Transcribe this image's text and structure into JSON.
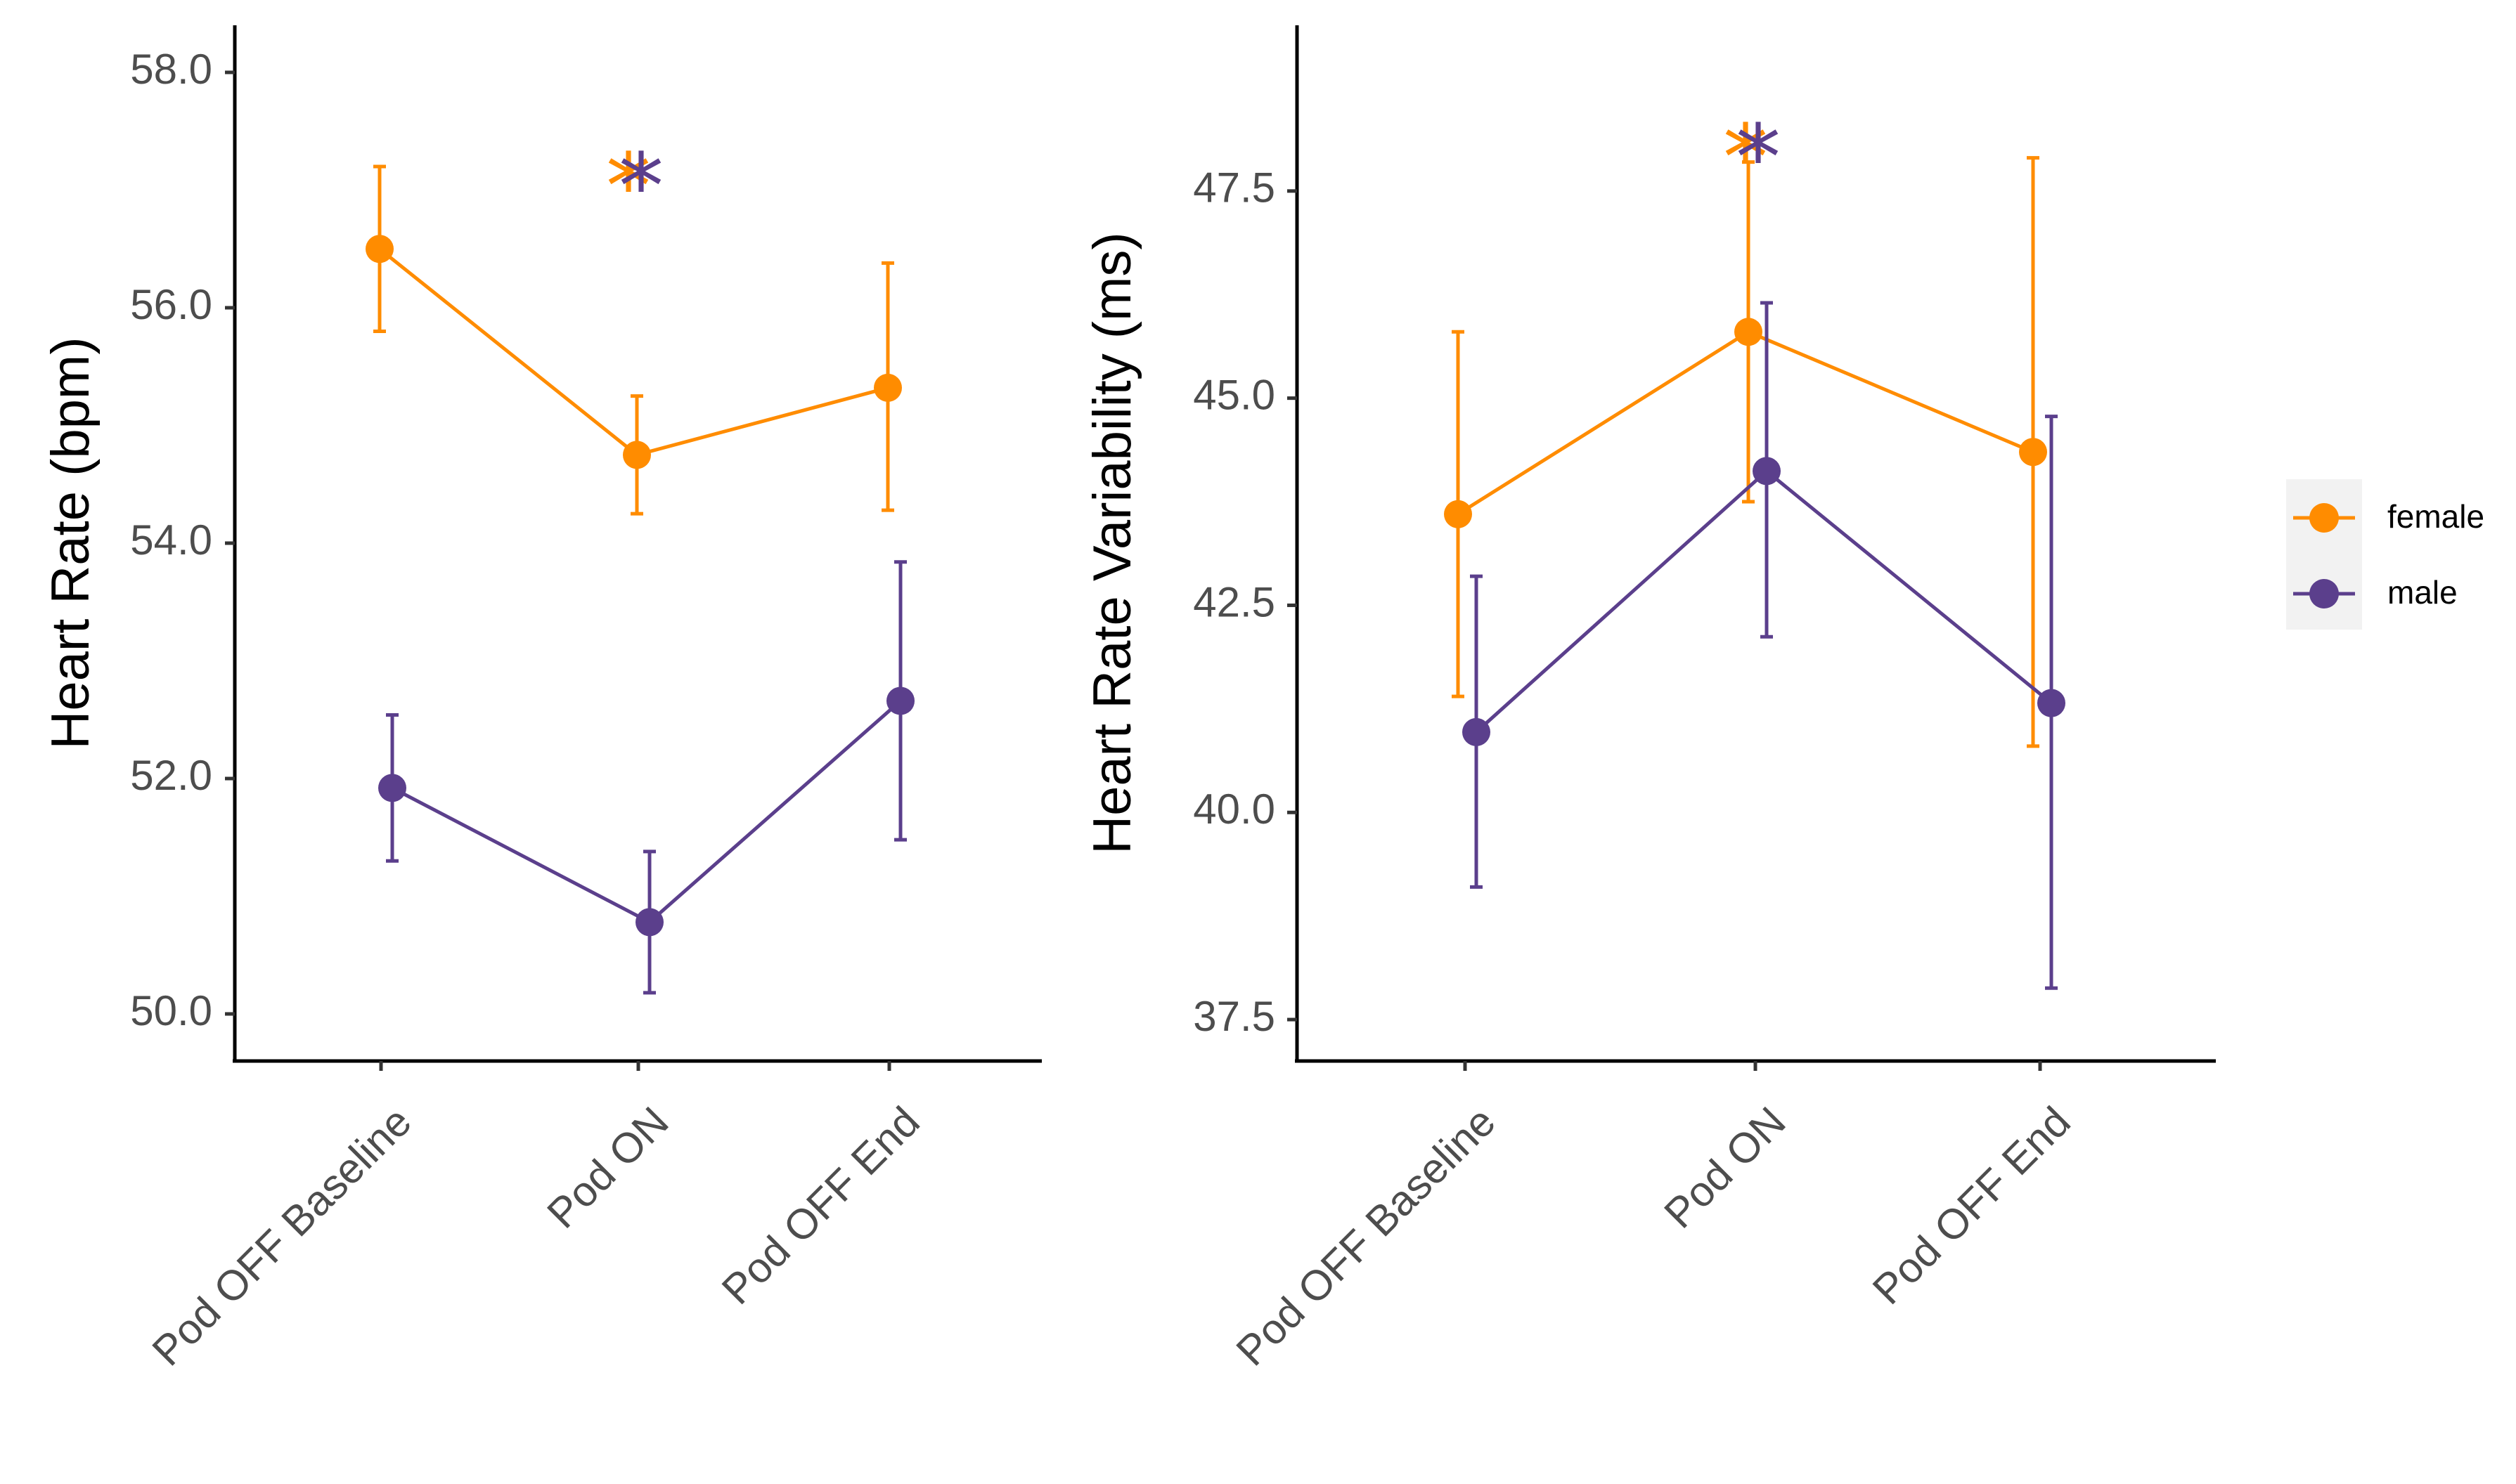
{
  "chart_data": [
    {
      "type": "line",
      "panel": "left",
      "categories": [
        "Pod OFF Baseline",
        "Pod ON",
        "Pod OFF End"
      ],
      "ylabel": "Heart Rate (bpm)",
      "xlabel": "",
      "ylim": [
        49.6,
        58.4
      ],
      "yticks": [
        50.0,
        52.0,
        54.0,
        56.0,
        58.0
      ],
      "ytick_labels": [
        "50.0",
        "52.0",
        "54.0",
        "56.0",
        "58.0"
      ],
      "series": [
        {
          "name": "female",
          "color": "#FF8C00",
          "values": [
            56.5,
            54.75,
            55.32
          ],
          "error_low": [
            55.8,
            54.25,
            54.28
          ],
          "error_high": [
            57.2,
            55.25,
            56.38
          ]
        },
        {
          "name": "male",
          "color": "#5B3F8C",
          "values": [
            51.92,
            50.78,
            52.66
          ],
          "error_low": [
            51.3,
            50.18,
            51.48
          ],
          "error_high": [
            52.54,
            51.38,
            53.84
          ]
        }
      ],
      "annotations": [
        {
          "text": "*",
          "category": "Pod ON",
          "y": 57.1,
          "colors": [
            "#FF8C00",
            "#5B3F8C"
          ]
        }
      ]
    },
    {
      "type": "line",
      "panel": "right",
      "categories": [
        "Pod OFF Baseline",
        "Pod ON",
        "Pod OFF End"
      ],
      "ylabel": "Heart Rate Variability (ms)",
      "xlabel": "",
      "ylim": [
        37.0,
        49.5
      ],
      "yticks": [
        37.5,
        40.0,
        42.5,
        45.0,
        47.5
      ],
      "ytick_labels": [
        "37.5",
        "40.0",
        "42.5",
        "45.0",
        "47.5"
      ],
      "series": [
        {
          "name": "female",
          "color": "#FF8C00",
          "values": [
            43.6,
            45.8,
            44.35
          ],
          "error_low": [
            41.4,
            43.75,
            40.8
          ],
          "error_high": [
            45.8,
            47.85,
            47.9
          ]
        },
        {
          "name": "male",
          "color": "#5B3F8C",
          "values": [
            40.97,
            44.12,
            41.32
          ],
          "error_low": [
            39.1,
            42.12,
            37.88
          ],
          "error_high": [
            42.85,
            46.15,
            44.78
          ]
        }
      ],
      "annotations": [
        {
          "text": "*",
          "category": "Pod ON",
          "y": 48.0,
          "colors": [
            "#FF8C00",
            "#5B3F8C"
          ]
        }
      ]
    }
  ],
  "legend": {
    "items": [
      {
        "label": "female",
        "color": "#FF8C00"
      },
      {
        "label": "male",
        "color": "#5B3F8C"
      }
    ]
  }
}
